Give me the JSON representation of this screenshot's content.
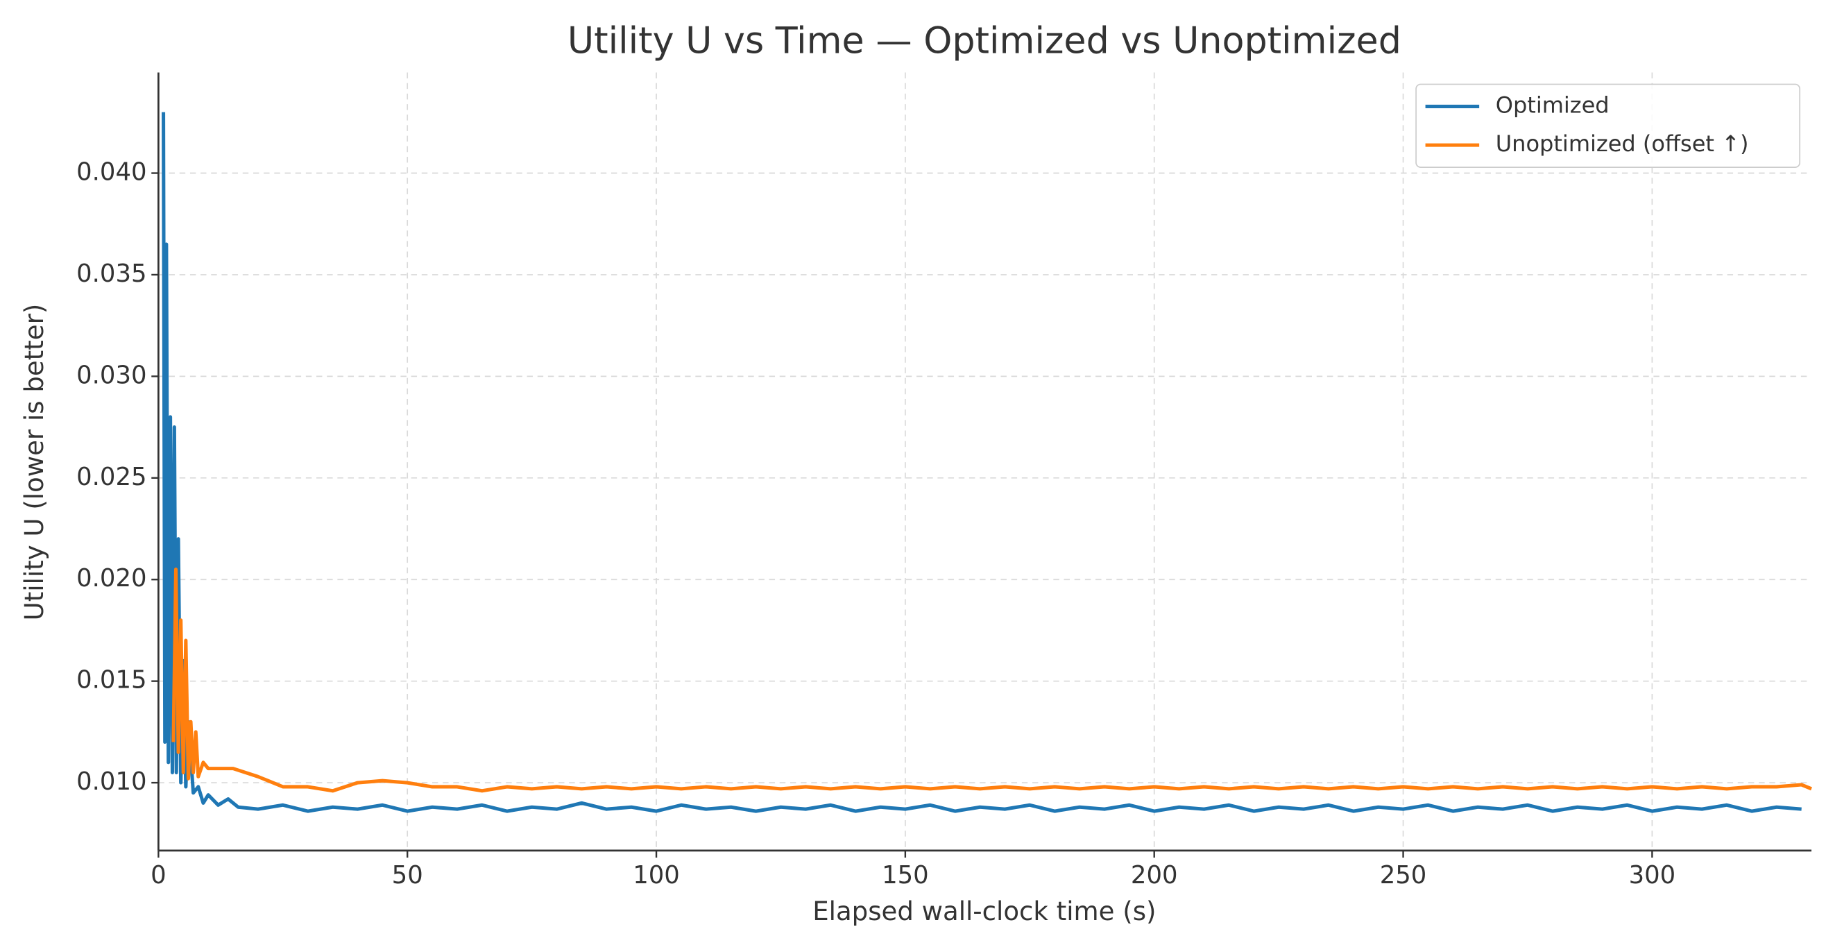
{
  "chart_data": {
    "type": "line",
    "title": "Utility U vs Time — Optimized vs Unoptimized",
    "x_label": "Elapsed wall-clock time (s)",
    "y_label": "Utility U (lower is better)",
    "xlim": [
      0,
      332
    ],
    "ylim": [
      0.00666,
      0.04495
    ],
    "xticks": [
      0,
      50,
      100,
      150,
      200,
      250,
      300
    ],
    "yticks": [
      {
        "value": 0.01,
        "label": "0.010"
      },
      0.015,
      {
        "value": 0.02,
        "label": "0.020"
      },
      0.025,
      {
        "value": 0.03,
        "label": "0.030"
      },
      0.035,
      {
        "value": 0.04,
        "label": "0.040"
      }
    ],
    "grid": true,
    "legend": "upper right",
    "series": [
      {
        "name": "Optimized",
        "color": "#1f77b4",
        "x": [
          1,
          1.3,
          1.6,
          2,
          2.4,
          2.8,
          3.2,
          3.6,
          4,
          4.5,
          5,
          5.5,
          6,
          7,
          8,
          9,
          10,
          12,
          14,
          16,
          20,
          25,
          30,
          35,
          40,
          45,
          50,
          55,
          60,
          65,
          70,
          75,
          80,
          85,
          90,
          95,
          100,
          105,
          110,
          115,
          120,
          125,
          130,
          135,
          140,
          145,
          150,
          155,
          160,
          165,
          170,
          175,
          180,
          185,
          190,
          195,
          200,
          205,
          210,
          215,
          220,
          225,
          230,
          235,
          240,
          245,
          250,
          255,
          260,
          265,
          270,
          275,
          280,
          285,
          290,
          295,
          300,
          305,
          310,
          315,
          320,
          325,
          330
        ],
        "values": [
          0.043,
          0.012,
          0.0365,
          0.011,
          0.028,
          0.0105,
          0.0275,
          0.0105,
          0.022,
          0.01,
          0.016,
          0.0098,
          0.013,
          0.0095,
          0.0098,
          0.009,
          0.0094,
          0.0089,
          0.0092,
          0.0088,
          0.0087,
          0.0089,
          0.0086,
          0.0088,
          0.0087,
          0.0089,
          0.0086,
          0.0088,
          0.0087,
          0.0089,
          0.0086,
          0.0088,
          0.0087,
          0.009,
          0.0087,
          0.0088,
          0.0086,
          0.0089,
          0.0087,
          0.0088,
          0.0086,
          0.0088,
          0.0087,
          0.0089,
          0.0086,
          0.0088,
          0.0087,
          0.0089,
          0.0086,
          0.0088,
          0.0087,
          0.0089,
          0.0086,
          0.0088,
          0.0087,
          0.0089,
          0.0086,
          0.0088,
          0.0087,
          0.0089,
          0.0086,
          0.0088,
          0.0087,
          0.0089,
          0.0086,
          0.0088,
          0.0087,
          0.0089,
          0.0086,
          0.0088,
          0.0087,
          0.0089,
          0.0086,
          0.0088,
          0.0087,
          0.0089,
          0.0086,
          0.0088,
          0.0087,
          0.0089,
          0.0086,
          0.0088,
          0.0087
        ]
      },
      {
        "name": "Unoptimized (offset ↑)",
        "color": "#ff7f0e",
        "x": [
          3,
          3.5,
          4,
          4.5,
          5,
          5.5,
          6,
          6.5,
          7,
          7.5,
          8,
          9,
          10,
          15,
          20,
          25,
          30,
          35,
          40,
          45,
          50,
          55,
          60,
          65,
          70,
          75,
          80,
          85,
          90,
          95,
          100,
          105,
          110,
          115,
          120,
          125,
          130,
          135,
          140,
          145,
          150,
          155,
          160,
          165,
          170,
          175,
          180,
          185,
          190,
          195,
          200,
          205,
          210,
          215,
          220,
          225,
          230,
          235,
          240,
          245,
          250,
          255,
          260,
          265,
          270,
          275,
          280,
          285,
          290,
          295,
          300,
          305,
          310,
          315,
          320,
          325,
          330,
          332
        ],
        "values": [
          0.012,
          0.0205,
          0.0115,
          0.018,
          0.0105,
          0.017,
          0.0102,
          0.013,
          0.0105,
          0.0125,
          0.0103,
          0.011,
          0.0107,
          0.0107,
          0.0103,
          0.0098,
          0.0098,
          0.0096,
          0.01,
          0.0101,
          0.01,
          0.0098,
          0.0098,
          0.0096,
          0.0098,
          0.0097,
          0.0098,
          0.0097,
          0.0098,
          0.0097,
          0.0098,
          0.0097,
          0.0098,
          0.0097,
          0.0098,
          0.0097,
          0.0098,
          0.0097,
          0.0098,
          0.0097,
          0.0098,
          0.0097,
          0.0098,
          0.0097,
          0.0098,
          0.0097,
          0.0098,
          0.0097,
          0.0098,
          0.0097,
          0.0098,
          0.0097,
          0.0098,
          0.0097,
          0.0098,
          0.0097,
          0.0098,
          0.0097,
          0.0098,
          0.0097,
          0.0098,
          0.0097,
          0.0098,
          0.0097,
          0.0098,
          0.0097,
          0.0098,
          0.0097,
          0.0098,
          0.0097,
          0.0098,
          0.0097,
          0.0098,
          0.0097,
          0.0098,
          0.0098,
          0.0099,
          0.0097
        ]
      }
    ]
  }
}
